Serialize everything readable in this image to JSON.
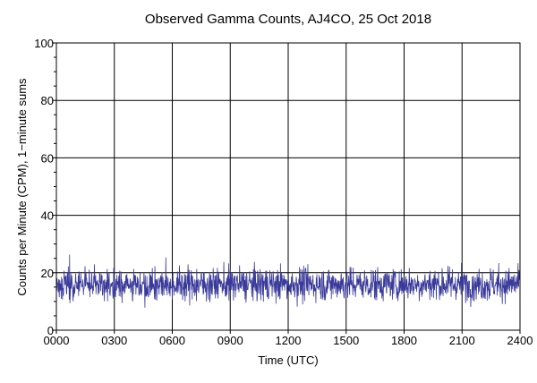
{
  "chart_data": {
    "type": "line",
    "title": "Observed Gamma Counts, AJ4CO, 25 Oct 2018",
    "xlabel": "Time (UTC)",
    "ylabel": "Counts per Minute (CPM), 1−minute sums",
    "xlim": [
      0,
      1440
    ],
    "ylim": [
      0,
      100
    ],
    "x_ticks": [
      {
        "value": 0,
        "label": "0000"
      },
      {
        "value": 180,
        "label": "0300"
      },
      {
        "value": 360,
        "label": "0600"
      },
      {
        "value": 540,
        "label": "0900"
      },
      {
        "value": 720,
        "label": "1200"
      },
      {
        "value": 900,
        "label": "1500"
      },
      {
        "value": 1080,
        "label": "1800"
      },
      {
        "value": 1260,
        "label": "2100"
      },
      {
        "value": 1440,
        "label": "2400"
      }
    ],
    "y_ticks": [
      {
        "value": 0,
        "label": "0"
      },
      {
        "value": 20,
        "label": "20"
      },
      {
        "value": 40,
        "label": "40"
      },
      {
        "value": 60,
        "label": "60"
      },
      {
        "value": 80,
        "label": "80"
      },
      {
        "value": 100,
        "label": "100"
      }
    ],
    "grid": true,
    "series": [
      {
        "color": "#3a3a9a",
        "x_start": 0,
        "x_step": 1,
        "count": 1440,
        "y_sample_params": {
          "mean": 16,
          "min": 4,
          "max": 32,
          "seed": 2018
        },
        "y_approx_range": [
          6,
          30
        ]
      }
    ]
  },
  "colors": {
    "background": "#ffffff",
    "grid": "#000000",
    "axis": "#000000",
    "series": "#3a3a9a"
  }
}
